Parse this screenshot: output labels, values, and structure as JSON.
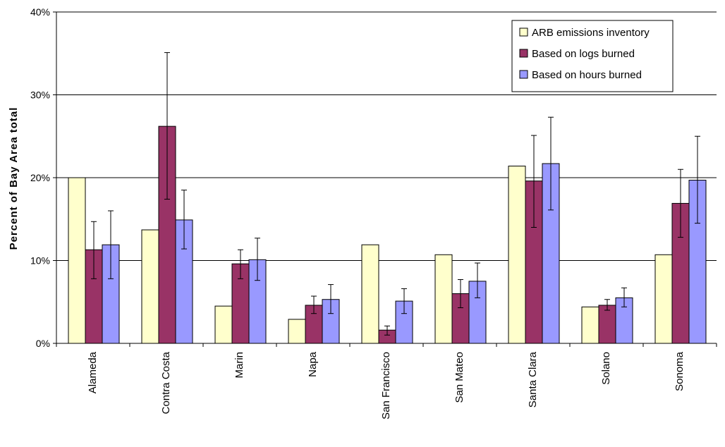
{
  "chart_data": {
    "type": "bar",
    "title": "",
    "xlabel": "",
    "ylabel": "Percent of Bay Area total",
    "ylim": [
      0,
      40
    ],
    "yticks": [
      0,
      10,
      20,
      30,
      40
    ],
    "ytick_labels": [
      "0%",
      "10%",
      "20%",
      "30%",
      "40%"
    ],
    "grid": true,
    "legend_position": "top-right",
    "categories": [
      "Alameda",
      "Contra Costa",
      "Marin",
      "Napa",
      "San Francisco",
      "San Mateo",
      "Santa Clara",
      "Solano",
      "Sonoma"
    ],
    "series": [
      {
        "name": "ARB emissions inventory",
        "color": "#ffffcc",
        "values": [
          20.0,
          13.7,
          4.5,
          2.9,
          11.9,
          10.7,
          21.4,
          4.4,
          10.7
        ],
        "error_low": null,
        "error_high": null
      },
      {
        "name": "Based on logs burned",
        "color": "#993366",
        "values": [
          11.3,
          26.2,
          9.6,
          4.6,
          1.6,
          6.0,
          19.6,
          4.6,
          16.9
        ],
        "error_low": [
          7.8,
          17.4,
          7.8,
          3.6,
          1.0,
          4.3,
          14.0,
          4.0,
          12.8
        ],
        "error_high": [
          14.7,
          35.1,
          11.3,
          5.7,
          2.1,
          7.7,
          25.1,
          5.3,
          21.0
        ]
      },
      {
        "name": "Based on hours burned",
        "color": "#9999ff",
        "values": [
          11.9,
          14.9,
          10.1,
          5.3,
          5.1,
          7.5,
          21.7,
          5.5,
          19.7
        ],
        "error_low": [
          7.8,
          11.4,
          7.6,
          3.6,
          3.6,
          5.5,
          16.1,
          4.4,
          14.5
        ],
        "error_high": [
          16.0,
          18.5,
          12.7,
          7.1,
          6.6,
          9.7,
          27.3,
          6.7,
          25.0
        ]
      }
    ]
  }
}
